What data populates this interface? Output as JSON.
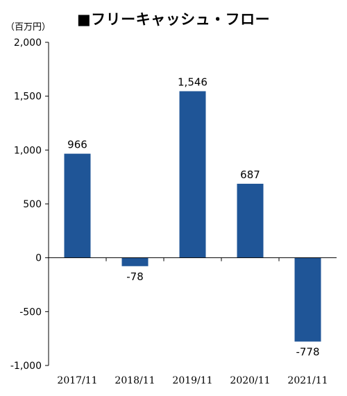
{
  "title": "■フリーキャッシュ・フロー",
  "unit_label": "（百万円）",
  "chart_data": {
    "type": "bar",
    "title": "■フリーキャッシュ・フロー",
    "ylabel": "（百万円）",
    "xlabel": "",
    "categories": [
      "2017/11",
      "2018/11",
      "2019/11",
      "2020/11",
      "2021/11"
    ],
    "values": [
      966,
      -78,
      1546,
      687,
      -778
    ],
    "data_labels": [
      "966",
      "-78",
      "1,546",
      "687",
      "-778"
    ],
    "ylim": [
      -1000,
      2000
    ],
    "yticks": [
      2000,
      1500,
      1000,
      500,
      0,
      -500,
      -1000
    ],
    "ytick_labels": [
      "2,000",
      "1,500",
      "1,000",
      "500",
      "0",
      "-500",
      "-1,000"
    ],
    "grid": false,
    "legend": "none",
    "bar_color": "#1f5597"
  }
}
